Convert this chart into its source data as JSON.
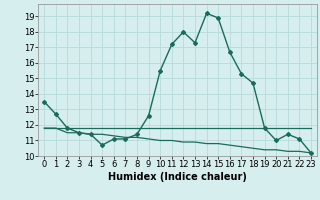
{
  "title": "",
  "xlabel": "Humidex (Indice chaleur)",
  "ylabel": "",
  "background_color": "#d6eeee",
  "grid_color": "#b8dada",
  "line_color": "#1a6b5a",
  "xlim": [
    -0.5,
    23.5
  ],
  "ylim": [
    10,
    19.8
  ],
  "yticks": [
    10,
    11,
    12,
    13,
    14,
    15,
    16,
    17,
    18,
    19
  ],
  "xticks": [
    0,
    1,
    2,
    3,
    4,
    5,
    6,
    7,
    8,
    9,
    10,
    11,
    12,
    13,
    14,
    15,
    16,
    17,
    18,
    19,
    20,
    21,
    22,
    23
  ],
  "series1_x": [
    0,
    1,
    2,
    3,
    4,
    5,
    6,
    7,
    8,
    9,
    10,
    11,
    12,
    13,
    14,
    15,
    16,
    17,
    18,
    19,
    20,
    21,
    22,
    23
  ],
  "series1_y": [
    13.5,
    12.7,
    11.8,
    11.5,
    11.4,
    10.7,
    11.1,
    11.1,
    11.4,
    12.6,
    15.5,
    17.2,
    18.0,
    17.3,
    19.2,
    18.9,
    16.7,
    15.3,
    14.7,
    11.8,
    11.0,
    11.4,
    11.1,
    10.2
  ],
  "series2_x": [
    0,
    1,
    2,
    3,
    4,
    5,
    6,
    7,
    8,
    9,
    10,
    11,
    12,
    13,
    14,
    15,
    16,
    17,
    18,
    19,
    20,
    21,
    22,
    23
  ],
  "series2_y": [
    11.8,
    11.8,
    11.8,
    11.8,
    11.8,
    11.8,
    11.8,
    11.8,
    11.8,
    11.8,
    11.8,
    11.8,
    11.8,
    11.8,
    11.8,
    11.8,
    11.8,
    11.8,
    11.8,
    11.8,
    11.8,
    11.8,
    11.8,
    11.8
  ],
  "series3_x": [
    0,
    1,
    2,
    3,
    4,
    5,
    6,
    7,
    8,
    9,
    10,
    11,
    12,
    13,
    14,
    15,
    16,
    17,
    18,
    19,
    20,
    21,
    22,
    23
  ],
  "series3_y": [
    11.8,
    11.8,
    11.5,
    11.5,
    11.4,
    11.4,
    11.3,
    11.2,
    11.2,
    11.1,
    11.0,
    11.0,
    10.9,
    10.9,
    10.8,
    10.8,
    10.7,
    10.6,
    10.5,
    10.4,
    10.4,
    10.3,
    10.3,
    10.2
  ],
  "tick_fontsize": 6,
  "xlabel_fontsize": 7
}
